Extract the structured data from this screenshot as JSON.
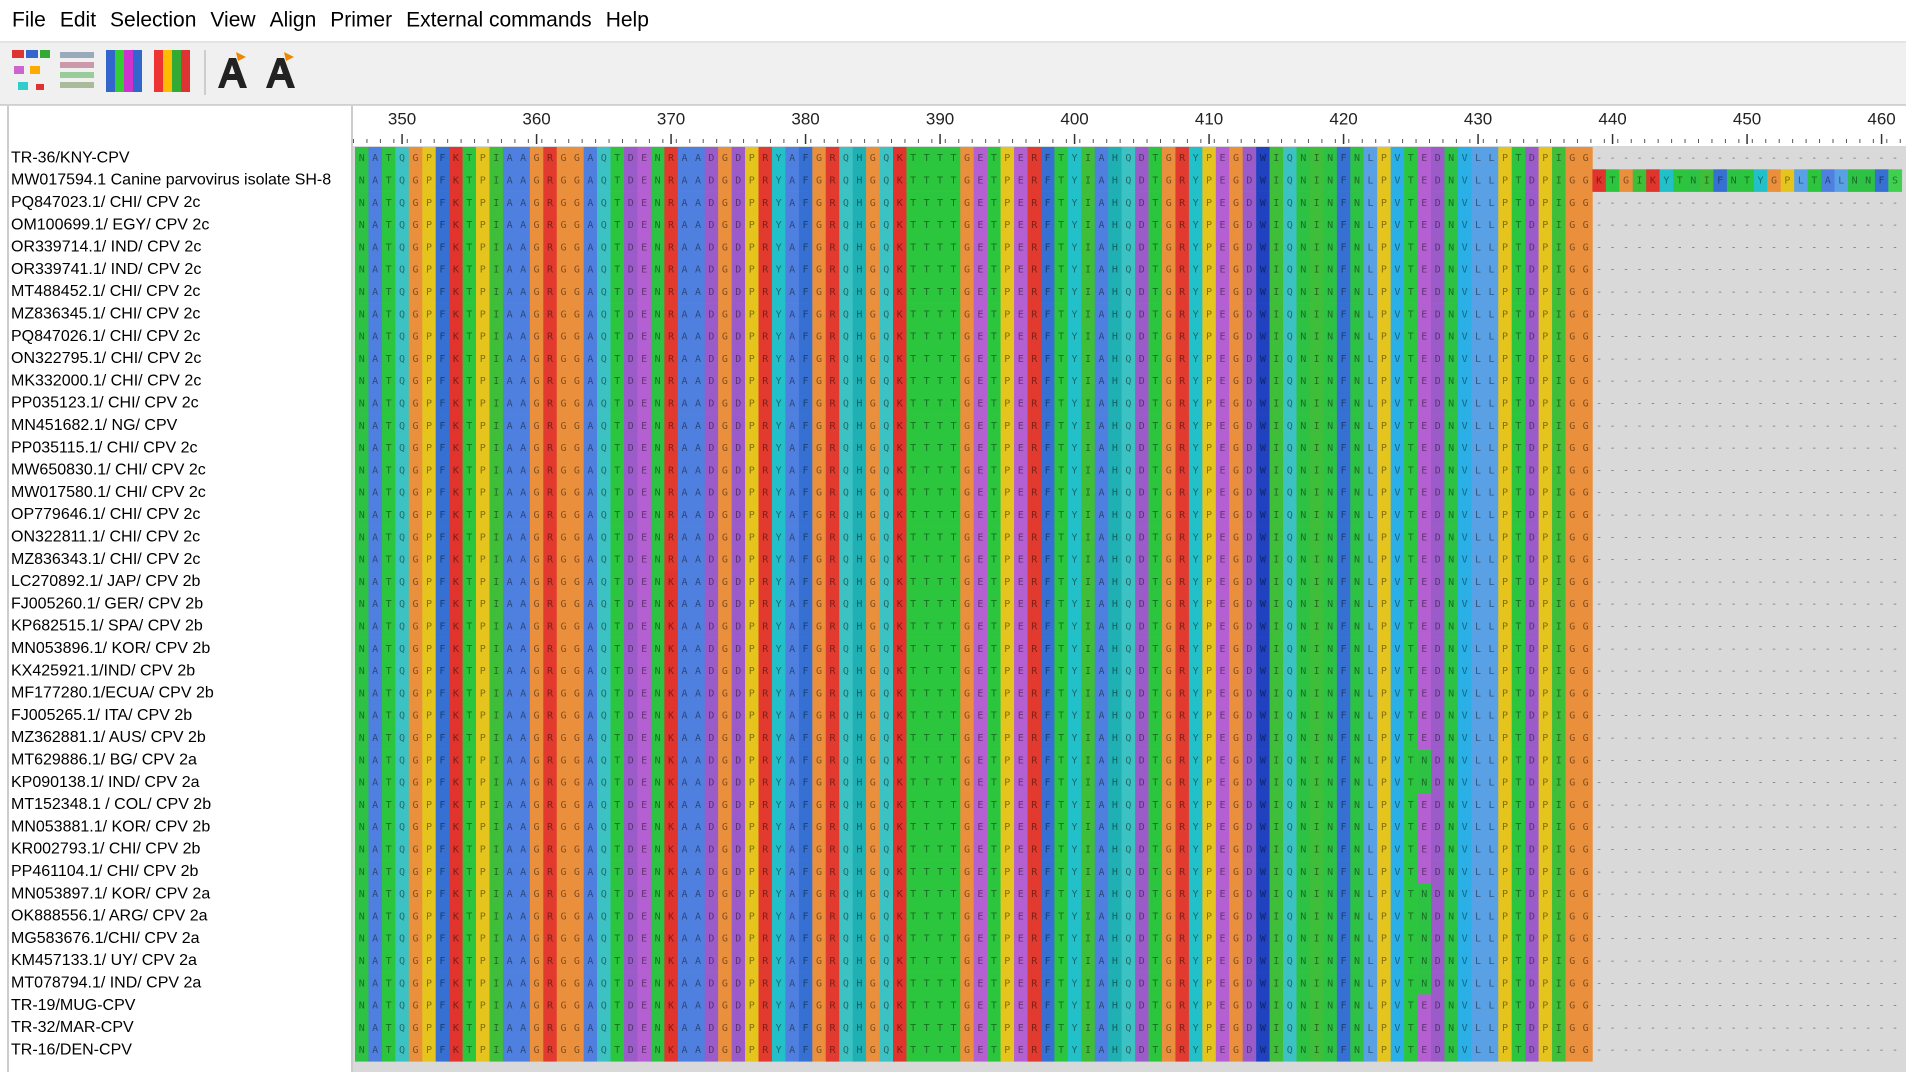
{
  "menu": [
    "File",
    "Edit",
    "Selection",
    "View",
    "Align",
    "Primer",
    "External commands",
    "Help"
  ],
  "ruler": {
    "xlim": [
      347,
      461
    ],
    "ticks": [
      350,
      360,
      370,
      380,
      390,
      400,
      410,
      420,
      430,
      440,
      450,
      460
    ]
  },
  "sequences": [
    {
      "name": "TR-36/KNY-CPV",
      "seq": "NATQGPFKTPIAAGRGGAQTDENRAADGDPRYAFGRQHGQKTTTTGETPERFTYIAHQDTGRYPEGDWIQNINFNLPVTEDNVLLPTDPIGG-----------------------"
    },
    {
      "name": "MW017594.1 Canine parvovirus isolate SH-8",
      "seq": "NATQGPFKTPIAAGRGGAQTDENRAADGDPRYAFGRQHGQKTTTTGETPERFTYIAHQDTGRYPEGDWIQNINFNLPVTEDNVLLPTDPIGGKTGIKYTNIFNTYGPLTALNNFS"
    },
    {
      "name": "PQ847023.1/ CHI/ CPV 2c",
      "seq": "NATQGPFKTPIAAGRGGAQTDENRAADGDPRYAFGRQHGQKTTTTGETPERFTYIAHQDTGRYPEGDWIQNINFNLPVTEDNVLLPTDPIGG-----------------------"
    },
    {
      "name": "OM100699.1/ EGY/ CPV 2c",
      "seq": "NATQGPFKTPIAAGRGGAQTDENRAADGDPRYAFGRQHGQKTTTTGETPERFTYIAHQDTGRYPEGDWIQNINFNLPVTEDNVLLPTDPIGG-----------------------"
    },
    {
      "name": "OR339714.1/ IND/ CPV 2c",
      "seq": "NATQGPFKTPIAAGRGGAQTDENRAADGDPRYAFGRQHGQKTTTTGETPERFTYIAHQDTGRYPEGDWIQNINFNLPVTEDNVLLPTDPIGG-----------------------"
    },
    {
      "name": "OR339741.1/ IND/ CPV 2c",
      "seq": "NATQGPFKTPIAAGRGGAQTDENRAADGDPRYAFGRQHGQKTTTTGETPERFTYIAHQDTGRYPEGDWIQNINFNLPVTEDNVLLPTDPIGG-----------------------"
    },
    {
      "name": "MT488452.1/ CHI/ CPV 2c",
      "seq": "NATQGPFKTPIAAGRGGAQTDENRAADGDPRYAFGRQHGQKTTTTGETPERFTYIAHQDTGRYPEGDWIQNINFNLPVTEDNVLLPTDPIGG-----------------------"
    },
    {
      "name": "MZ836345.1/ CHI/ CPV 2c",
      "seq": "NATQGPFKTPIAAGRGGAQTDENRAADGDPRYAFGRQHGQKTTTTGETPERFTYIAHQDTGRYPEGDWIQNINFNLPVTEDNVLLPTDPIGG-----------------------"
    },
    {
      "name": "PQ847026.1/ CHI/ CPV 2c",
      "seq": "NATQGPFKTPIAAGRGGAQTDENRAADGDPRYAFGRQHGQKTTTTGETPERFTYIAHQDTGRYPEGDWIQNINFNLPVTEDNVLLPTDPIGG-----------------------"
    },
    {
      "name": "ON322795.1/ CHI/ CPV 2c",
      "seq": "NATQGPFKTPIAAGRGGAQTDENRAADGDPRYAFGRQHGQKTTTTGETPERFTYIAHQDTGRYPEGDWIQNINFNLPVTEDNVLLPTDPIGG-----------------------"
    },
    {
      "name": "MK332000.1/ CHI/ CPV 2c",
      "seq": "NATQGPFKTPIAAGRGGAQTDENRAADGDPRYAFGRQHGQKTTTTGETPERFTYIAHQDTGRYPEGDWIQNINFNLPVTEDNVLLPTDPIGG-----------------------"
    },
    {
      "name": "PP035123.1/ CHI/ CPV 2c",
      "seq": "NATQGPFKTPIAAGRGGAQTDENRAADGDPRYAFGRQHGQKTTTTGETPERFTYIAHQDTGRYPEGDWIQNINFNLPVTEDNVLLPTDPIGG-----------------------"
    },
    {
      "name": "MN451682.1/ NG/ CPV",
      "seq": "NATQGPFKTPIAAGRGGAQTDENRAADGDPRYAFGRQHGQKTTTTGETPERFTYIAHQDTGRYPEGDWIQNINFNLPVTEDNVLLPTDPIGG-----------------------"
    },
    {
      "name": "PP035115.1/ CHI/ CPV 2c",
      "seq": "NATQGPFKTPIAAGRGGAQTDENRAADGDPRYAFGRQHGQKTTTTGETPERFTYIAHQDTGRYPEGDWIQNINFNLPVTEDNVLLPTDPIGG-----------------------"
    },
    {
      "name": "MW650830.1/ CHI/ CPV 2c",
      "seq": "NATQGPFKTPIAAGRGGAQTDENRAADGDPRYAFGRQHGQKTTTTGETPERFTYIAHQDTGRYPEGDWIQNINFNLPVTEDNVLLPTDPIGG-----------------------"
    },
    {
      "name": "MW017580.1/ CHI/ CPV 2c",
      "seq": "NATQGPFKTPIAAGRGGAQTDENRAADGDPRYAFGRQHGQKTTTTGETPERFTYIAHQDTGRYPEGDWIQNINFNLPVTEDNVLLPTDPIGG-----------------------"
    },
    {
      "name": "OP779646.1/ CHI/ CPV 2c",
      "seq": "NATQGPFKTPIAAGRGGAQTDENRAADGDPRYAFGRQHGQKTTTTGETPERFTYIAHQDTGRYPEGDWIQNINFNLPVTEDNVLLPTDPIGG-----------------------"
    },
    {
      "name": "ON322811.1/ CHI/ CPV 2c",
      "seq": "NATQGPFKTPIAAGRGGAQTDENRAADGDPRYAFGRQHGQKTTTTGETPERFTYIAHQDTGRYPEGDWIQNINFNLPVTEDNVLLPTDPIGG-----------------------"
    },
    {
      "name": "MZ836343.1/ CHI/ CPV 2c",
      "seq": "NATQGPFKTPIAAGRGGAQTDENRAADGDPRYAFGRQHGQKTTTTGETPERFTYIAHQDTGRYPEGDWIQNINFNLPVTEDNVLLPTDPIGG-----------------------"
    },
    {
      "name": "LC270892.1/ JAP/ CPV 2b",
      "seq": "NATQGPFKTPIAAGRGGAQTDENKAADGDPRYAFGRQHGQKTTTTGETPERFTYIAHQDTGRYPEGDWIQNINFNLPVTEDNVLLPTDPIGG-----------------------"
    },
    {
      "name": "FJ005260.1/ GER/ CPV 2b",
      "seq": "NATQGPFKTPIAAGRGGAQTDENKAADGDPRYAFGRQHGQKTTTTGETPERFTYIAHQDTGRYPEGDWIQNINFNLPVTEDNVLLPTDPIGG-----------------------"
    },
    {
      "name": "KP682515.1/ SPA/ CPV 2b",
      "seq": "NATQGPFKTPIAAGRGGAQTDENKAADGDPRYAFGRQHGQKTTTTGETPERFTYIAHQDTGRYPEGDWIQNINFNLPVTEDNVLLPTDPIGG-----------------------"
    },
    {
      "name": "MN053896.1/ KOR/ CPV 2b",
      "seq": "NATQGPFKTPIAAGRGGAQTDENKAADGDPRYAFGRQHGQKTTTTGETPERFTYIAHQDTGRYPEGDWIQNINFNLPVTEDNVLLPTDPIGG-----------------------"
    },
    {
      "name": "KX425921.1/IND/ CPV 2b",
      "seq": "NATQGPFKTPIAAGRGGAQTDENKAADGDPRYAFGRQHGQKTTTTGETPERFTYIAHQDTGRYPEGDWIQNINFNLPVTEDNVLLPTDPIGG-----------------------"
    },
    {
      "name": "MF177280.1/ECUA/ CPV 2b",
      "seq": "NATQGPFKTPIAAGRGGAQTDENKAADGDPRYAFGRQHGQKTTTTGETPERFTYIAHQDTGRYPEGDWIQNINFNLPVTEDNVLLPTDPIGG-----------------------"
    },
    {
      "name": "FJ005265.1/ ITA/ CPV 2b",
      "seq": "NATQGPFKTPIAAGRGGAQTDENKAADGDPRYAFGRQHGQKTTTTGETPERFTYIAHQDTGRYPEGDWIQNINFNLPVTEDNVLLPTDPIGG-----------------------"
    },
    {
      "name": "MZ362881.1/ AUS/ CPV 2b",
      "seq": "NATQGPFKTPIAAGRGGAQTDENKAADGDPRYAFGRQHGQKTTTTGETPERFTYIAHQDTGRYPEGDWIQNINFNLPVTEDNVLLPTDPIGG-----------------------"
    },
    {
      "name": "MT629886.1/ BG/ CPV 2a",
      "seq": "NATQGPFKTPIAAGRGGAQTDENKAADGDPRYAFGRQHGQKTTTTGETPERFTYIAHQDTGRYPEGDWIQNINFNLPVTNDNVLLPTDPIGG-----------------------"
    },
    {
      "name": "KP090138.1/ IND/ CPV 2a",
      "seq": "NATQGPFKTPIAAGRGGAQTDENKAADGDPRYAFGRQHGQKTTTTGETPERFTYIAHQDTGRYPEGDWIQNINFNLPVTNDNVLLPTDPIGG-----------------------"
    },
    {
      "name": "MT152348.1 / COL/ CPV 2b",
      "seq": "NATQGPFKTPIAAGRGGAQTDENKAADGDPRYAFGRQHGQKTTTTGETPERFTYIAHQDTGRYPEGDWIQNINFNLPVTEDNVLLPTDPIGG-----------------------"
    },
    {
      "name": "MN053881.1/ KOR/ CPV 2b",
      "seq": "NATQGPFKTPIAAGRGGAQTDENKAADGDPRYAFGRQHGQKTTTTGETPERFTYIAHQDTGRYPEGDWIQNINFNLPVTEDNVLLPTDPIGG-----------------------"
    },
    {
      "name": "KR002793.1/ CHI/ CPV 2b",
      "seq": "NATQGPFKTPIAAGRGGAQTDENKAADGDPRYAFGRQHGQKTTTTGETPERFTYIAHQDTGRYPEGDWIQNINFNLPVTEDNVLLPTDPIGG-----------------------"
    },
    {
      "name": "PP461104.1/ CHI/ CPV 2b",
      "seq": "NATQGPFKTPIAAGRGGAQTDENKAADGDPRYAFGRQHGQKTTTTGETPERFTYIAHQDTGRYPEGDWIQNINFNLPVTEDNVLLPTDPIGG-----------------------"
    },
    {
      "name": "MN053897.1/ KOR/ CPV 2a",
      "seq": "NATQGPFKTPIAAGRGGAQTDENKAADGDPRYAFGRQHGQKTTTTGETPERFTYIAHQDTGRYPEGDWIQNINFNLPVTNDNVLLPTDPIGG-----------------------"
    },
    {
      "name": "OK888556.1/ ARG/ CPV 2a",
      "seq": "NATQGPFKTPIAAGRGGAQTDENKAADGDPRYAFGRQHGQKTTTTGETPERFTYIAHQDTGRYPEGDWIQNINFNLPVTNDNVLLPTDPIGG-----------------------"
    },
    {
      "name": "MG583676.1/CHI/ CPV 2a",
      "seq": "NATQGPFKTPIAAGRGGAQTDENKAADGDPRYAFGRQHGQKTTTTGETPERFTYIAHQDTGRYPEGDWIQNINFNLPVTNDNVLLPTDPIGG-----------------------"
    },
    {
      "name": "KM457133.1/ UY/ CPV 2a",
      "seq": "NATQGPFKTPIAAGRGGAQTDENKAADGDPRYAFGRQHGQKTTTTGETPERFTYIAHQDTGRYPEGDWIQNINFNLPVTNDNVLLPTDPIGG-----------------------"
    },
    {
      "name": "MT078794.1/ IND/ CPV 2a",
      "seq": "NATQGPFKTPIAAGRGGAQTDENKAADGDPRYAFGRQHGQKTTTTGETPERFTYIAHQDTGRYPEGDWIQNINFNLPVTNDNVLLPTDPIGG-----------------------"
    },
    {
      "name": "TR-19/MUG-CPV",
      "seq": "NATQGPFKTPIAAGRGGAQTDENKAADGDPRYAFGRQHGQKTTTTGETPERFTYIAHQDTGRYPEGDWIQNINFNLPVTEDNVLLPTDPIGG-----------------------"
    },
    {
      "name": "TR-32/MAR-CPV",
      "seq": "NATQGPFKTPIAAGRGGAQTDENKAADGDPRYAFGRQHGQKTTTTGETPERFTYIAHQDTGRYPEGDWIQNINFNLPVTEDNVLLPTDPIGG-----------------------"
    },
    {
      "name": "TR-16/DEN-CPV",
      "seq": "NATQGPFKTPIAAGRGGAQTDENKAADGDPRYAFGRQHGQKTTTTGETPERFTYIAHQDTGRYPEGDWIQNINFNLPVTEDNVLLPTDPIGG-----------------------"
    }
  ]
}
